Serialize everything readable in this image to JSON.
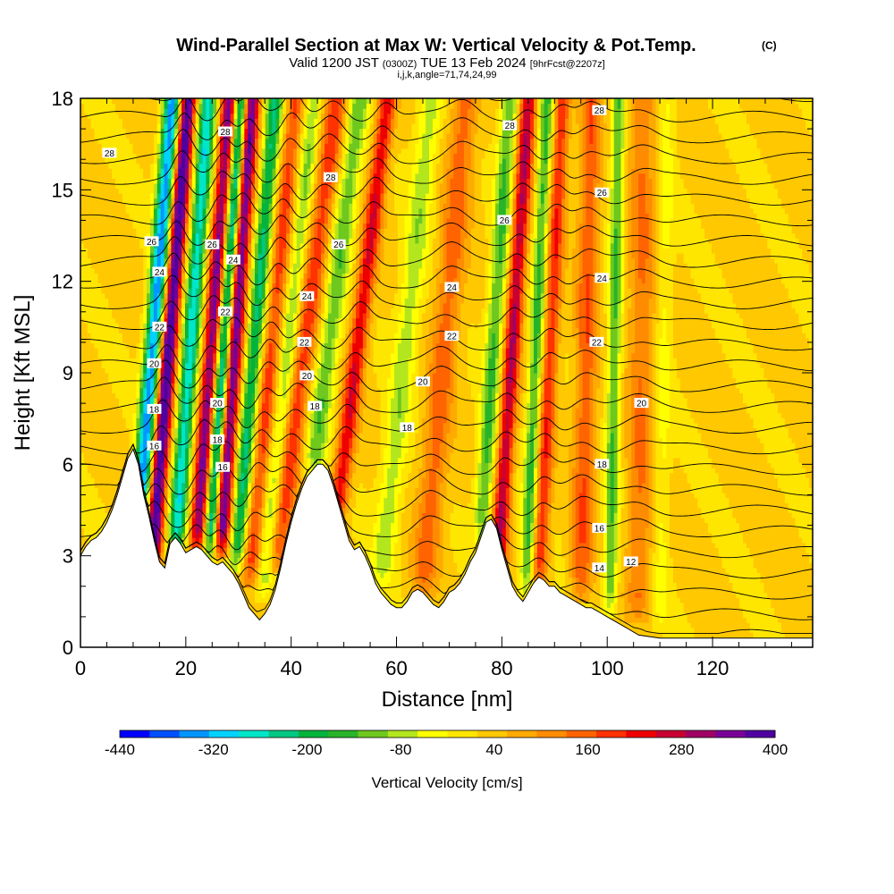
{
  "title": {
    "main": "Wind-Parallel Section at Max W: Vertical Velocity & Pot.Temp.",
    "copyright": "(C)",
    "valid_prefix": "Valid 1200 JST",
    "valid_utc": "(0300Z)",
    "valid_date": "TUE 13 Feb 2024",
    "forecast": "[9hrFcst@2207z]",
    "indices": "i,j,k,angle=71,74,24,99"
  },
  "chart_data": {
    "type": "heatmap",
    "title": "Wind-Parallel Section at Max W: Vertical Velocity & Pot.Temp.",
    "xlabel": "Distance [nm]",
    "ylabel": "Height [Kft MSL]",
    "xlim": [
      0,
      139
    ],
    "ylim": [
      0,
      18
    ],
    "x_ticks": [
      "0",
      "20",
      "40",
      "60",
      "80",
      "100",
      "120"
    ],
    "y_ticks": [
      "0",
      "3",
      "6",
      "9",
      "12",
      "15",
      "18"
    ],
    "x_tick_values": [
      0,
      20,
      40,
      60,
      80,
      100,
      120
    ],
    "y_tick_values": [
      0,
      3,
      6,
      9,
      12,
      15,
      18
    ],
    "colorbar": {
      "label": "Vertical Velocity [cm/s]",
      "min": -440,
      "max": 400,
      "tick_labels": [
        "-440",
        "-320",
        "-200",
        "-80",
        "40",
        "160",
        "280",
        "400"
      ],
      "colors": [
        "#0000ff",
        "#0050ff",
        "#0096ff",
        "#00d2ff",
        "#00e6c8",
        "#00c882",
        "#00b43c",
        "#28b428",
        "#6ec81e",
        "#b4e61e",
        "#ffff00",
        "#ffe600",
        "#ffc800",
        "#ffaa00",
        "#ff8c00",
        "#ff6400",
        "#ff3200",
        "#ee0000",
        "#c80032",
        "#a00064",
        "#780096",
        "#5000a0"
      ]
    },
    "terrain": [
      [
        0,
        3
      ],
      [
        1,
        3.3
      ],
      [
        2,
        3.5
      ],
      [
        3,
        3.6
      ],
      [
        4,
        3.8
      ],
      [
        5,
        4.1
      ],
      [
        6,
        4.5
      ],
      [
        7,
        5.0
      ],
      [
        8,
        5.6
      ],
      [
        9,
        6.2
      ],
      [
        10,
        6.5
      ],
      [
        11,
        6.0
      ],
      [
        12,
        5.0
      ],
      [
        13,
        4.3
      ],
      [
        14,
        3.5
      ],
      [
        15,
        2.8
      ],
      [
        16,
        2.6
      ],
      [
        17,
        3.4
      ],
      [
        18,
        3.6
      ],
      [
        19,
        3.4
      ],
      [
        20,
        3.1
      ],
      [
        21,
        3.2
      ],
      [
        22,
        3.3
      ],
      [
        23,
        3.2
      ],
      [
        24,
        3.0
      ],
      [
        25,
        2.8
      ],
      [
        26,
        2.7
      ],
      [
        27,
        2.8
      ],
      [
        28,
        2.6
      ],
      [
        29,
        2.4
      ],
      [
        30,
        2.1
      ],
      [
        31,
        1.7
      ],
      [
        32,
        1.3
      ],
      [
        33,
        1.1
      ],
      [
        34,
        0.9
      ],
      [
        35,
        1.1
      ],
      [
        36,
        1.4
      ],
      [
        37,
        1.9
      ],
      [
        38,
        2.6
      ],
      [
        39,
        3.4
      ],
      [
        40,
        4.1
      ],
      [
        41,
        4.7
      ],
      [
        42,
        5.2
      ],
      [
        43,
        5.6
      ],
      [
        44,
        5.8
      ],
      [
        45,
        6.0
      ],
      [
        46,
        6.0
      ],
      [
        47,
        5.8
      ],
      [
        48,
        5.3
      ],
      [
        49,
        4.7
      ],
      [
        50,
        4.1
      ],
      [
        51,
        3.5
      ],
      [
        52,
        3.2
      ],
      [
        53,
        3.3
      ],
      [
        54,
        3.0
      ],
      [
        55,
        2.6
      ],
      [
        56,
        2.1
      ],
      [
        57,
        1.8
      ],
      [
        58,
        1.6
      ],
      [
        59,
        1.4
      ],
      [
        60,
        1.3
      ],
      [
        61,
        1.3
      ],
      [
        62,
        1.5
      ],
      [
        63,
        1.8
      ],
      [
        64,
        1.9
      ],
      [
        65,
        1.8
      ],
      [
        66,
        1.6
      ],
      [
        67,
        1.4
      ],
      [
        68,
        1.3
      ],
      [
        69,
        1.5
      ],
      [
        70,
        1.8
      ],
      [
        71,
        1.9
      ],
      [
        72,
        2.1
      ],
      [
        73,
        2.4
      ],
      [
        74,
        2.8
      ],
      [
        75,
        3.1
      ],
      [
        76,
        3.6
      ],
      [
        77,
        4.1
      ],
      [
        78,
        4.2
      ],
      [
        79,
        3.9
      ],
      [
        80,
        3.2
      ],
      [
        81,
        2.6
      ],
      [
        82,
        2.0
      ],
      [
        83,
        1.7
      ],
      [
        84,
        1.5
      ],
      [
        85,
        1.8
      ],
      [
        86,
        2.1
      ],
      [
        87,
        2.3
      ],
      [
        88,
        2.2
      ],
      [
        89,
        2.0
      ],
      [
        90,
        2.0
      ],
      [
        91,
        1.8
      ],
      [
        92,
        1.7
      ],
      [
        93,
        1.6
      ],
      [
        94,
        1.5
      ],
      [
        95,
        1.4
      ],
      [
        96,
        1.3
      ],
      [
        97,
        1.3
      ],
      [
        98,
        1.2
      ],
      [
        99,
        1.1
      ],
      [
        100,
        1.0
      ],
      [
        101,
        0.9
      ],
      [
        102,
        0.8
      ],
      [
        103,
        0.7
      ],
      [
        104,
        0.6
      ],
      [
        106,
        0.4
      ],
      [
        110,
        0.3
      ],
      [
        120,
        0.3
      ],
      [
        139,
        0.3
      ]
    ],
    "updrafts": [
      {
        "x": 13.5,
        "amp": 400,
        "w": 1.5,
        "tilt": 0.45,
        "ybot": 2.6
      },
      {
        "x": 22.0,
        "amp": 320,
        "w": 1.5,
        "tilt": 0.42,
        "ybot": 3.0
      },
      {
        "x": 26.5,
        "amp": 350,
        "w": 1.5,
        "tilt": 0.4,
        "ybot": 3.0
      },
      {
        "x": 32.0,
        "amp": 160,
        "w": 1.6,
        "tilt": 0.55,
        "ybot": 2.0
      },
      {
        "x": 37.0,
        "amp": 170,
        "w": 2.0,
        "tilt": 0.75,
        "ybot": 2.4
      },
      {
        "x": 48.5,
        "amp": 220,
        "w": 1.7,
        "tilt": 0.7,
        "ybot": 4.0
      },
      {
        "x": 65.0,
        "amp": 130,
        "w": 2.5,
        "tilt": 0.5,
        "ybot": 1.7
      },
      {
        "x": 79.0,
        "amp": 260,
        "w": 1.5,
        "tilt": 0.38,
        "ybot": 2.0
      },
      {
        "x": 87.0,
        "amp": 180,
        "w": 1.5,
        "tilt": 0.28,
        "ybot": 1.9
      },
      {
        "x": 95.0,
        "amp": 140,
        "w": 2.0,
        "tilt": 0.12,
        "ybot": 1.4
      },
      {
        "x": 106.0,
        "amp": 110,
        "w": 2.5,
        "tilt": 0.05,
        "ybot": 0.8
      }
    ],
    "downdrafts": [
      {
        "x": 10.5,
        "amp": -380,
        "w": 1.6,
        "tilt": 0.45,
        "ybot": 2.6
      },
      {
        "x": 18.0,
        "amp": -300,
        "w": 1.6,
        "tilt": 0.42,
        "ybot": 3.0
      },
      {
        "x": 24.5,
        "amp": -330,
        "w": 1.3,
        "tilt": 0.4,
        "ybot": 3.0
      },
      {
        "x": 29.5,
        "amp": -240,
        "w": 1.5,
        "tilt": 0.48,
        "ybot": 2.5
      },
      {
        "x": 34.5,
        "amp": -120,
        "w": 1.5,
        "tilt": 0.6,
        "ybot": 1.5
      },
      {
        "x": 44.0,
        "amp": -150,
        "w": 2.0,
        "tilt": 0.72,
        "ybot": 5.5
      },
      {
        "x": 57.0,
        "amp": -110,
        "w": 2.2,
        "tilt": 0.6,
        "ybot": 2.0
      },
      {
        "x": 76.0,
        "amp": -170,
        "w": 1.6,
        "tilt": 0.38,
        "ybot": 3.5
      },
      {
        "x": 84.5,
        "amp": -180,
        "w": 1.3,
        "tilt": 0.25,
        "ybot": 1.6
      },
      {
        "x": 100.5,
        "amp": -160,
        "w": 1.3,
        "tilt": 0.1,
        "ybot": 1.0
      },
      {
        "x": 110.0,
        "amp": -60,
        "w": 1.5,
        "tilt": 0.08,
        "ybot": 0.5
      }
    ],
    "contour_labels": [
      {
        "text": "28",
        "x": 5.5,
        "y": 16.2
      },
      {
        "text": "28",
        "x": 27.5,
        "y": 16.9
      },
      {
        "text": "28",
        "x": 47.5,
        "y": 15.4
      },
      {
        "text": "28",
        "x": 81.5,
        "y": 17.1
      },
      {
        "text": "28",
        "x": 98.5,
        "y": 17.6
      },
      {
        "text": "26",
        "x": 13.5,
        "y": 13.3
      },
      {
        "text": "26",
        "x": 25.0,
        "y": 13.2
      },
      {
        "text": "26",
        "x": 49.0,
        "y": 13.2
      },
      {
        "text": "26",
        "x": 80.5,
        "y": 14.0
      },
      {
        "text": "26",
        "x": 99.0,
        "y": 14.9
      },
      {
        "text": "24",
        "x": 15.0,
        "y": 12.3
      },
      {
        "text": "24",
        "x": 29.0,
        "y": 12.7
      },
      {
        "text": "24",
        "x": 43.0,
        "y": 11.5
      },
      {
        "text": "24",
        "x": 70.5,
        "y": 11.8
      },
      {
        "text": "24",
        "x": 99.0,
        "y": 12.1
      },
      {
        "text": "22",
        "x": 15.0,
        "y": 10.5
      },
      {
        "text": "22",
        "x": 27.5,
        "y": 11.0
      },
      {
        "text": "22",
        "x": 42.5,
        "y": 10.0
      },
      {
        "text": "22",
        "x": 70.5,
        "y": 10.2
      },
      {
        "text": "22",
        "x": 98.0,
        "y": 10.0
      },
      {
        "text": "20",
        "x": 14.0,
        "y": 9.3
      },
      {
        "text": "20",
        "x": 26.0,
        "y": 8.0
      },
      {
        "text": "20",
        "x": 43.0,
        "y": 8.9
      },
      {
        "text": "20",
        "x": 65.0,
        "y": 8.7
      },
      {
        "text": "20",
        "x": 106.5,
        "y": 8.0
      },
      {
        "text": "18",
        "x": 14.0,
        "y": 7.8
      },
      {
        "text": "18",
        "x": 26.0,
        "y": 6.8
      },
      {
        "text": "18",
        "x": 44.5,
        "y": 7.9
      },
      {
        "text": "18",
        "x": 62.0,
        "y": 7.2
      },
      {
        "text": "18",
        "x": 99.0,
        "y": 6.0
      },
      {
        "text": "16",
        "x": 14.0,
        "y": 6.6
      },
      {
        "text": "16",
        "x": 27.0,
        "y": 5.9
      },
      {
        "text": "16",
        "x": 98.5,
        "y": 3.9
      },
      {
        "text": "14",
        "x": 98.5,
        "y": 2.6
      },
      {
        "text": "12",
        "x": 104.5,
        "y": 2.8
      }
    ]
  }
}
